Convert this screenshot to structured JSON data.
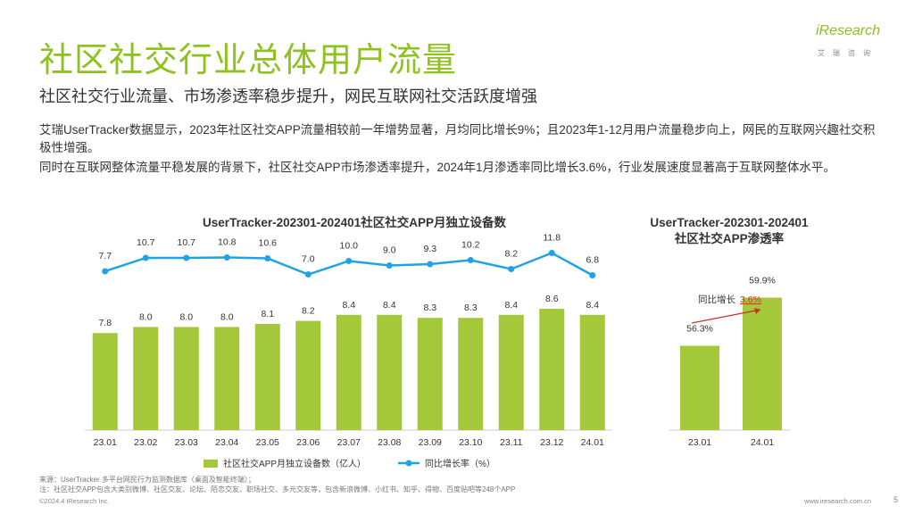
{
  "page": {
    "title": "社区社交行业总体用户流量",
    "subtitle": "社区社交行业流量、市场渗透率稳步提升，网民互联网社交活跃度增强",
    "para1": "艾瑞UserTracker数据显示，2023年社区社交APP流量相较前一年增势显著，月均同比增长9%；且2023年1-12月用户流量稳步向上，网民的互联网兴趣社交积极性增强。",
    "para2": "同时在互联网整体流量平稳发展的背景下，社区社交APP市场渗透率提升，2024年1月渗透率同比增长3.6%，行业发展速度显著高于互联网整体水平。",
    "logo_main": "iResearch",
    "logo_sub": "艾瑞咨询",
    "source1": "来源：UserTracker 多平台网民行为监测数据库（桌面及智能终端）；",
    "source2": "注：社区社交APP包含大类别微博、社区交友、论坛、陌恋交友、职场社交、多元交友等，包含新浪微博、小红书、知乎、得物、百度贴吧等248个APP",
    "footer_left": "©2024.4 iResearch Inc.",
    "footer_right": "www.iresearch.com.cn",
    "page_number": "5"
  },
  "chart_data": [
    {
      "type": "bar",
      "title": "UserTracker-202301-202401社区社交APP月独立设备数",
      "categories": [
        "23.01",
        "23.02",
        "23.03",
        "23.04",
        "23.05",
        "23.06",
        "23.07",
        "23.08",
        "23.09",
        "23.10",
        "23.11",
        "23.12",
        "24.01"
      ],
      "series": [
        {
          "name": "社区社交APP月独立设备数（亿人）",
          "type": "bar",
          "color": "#a3c83a",
          "values": [
            7.8,
            8.0,
            8.0,
            8.0,
            8.1,
            8.2,
            8.4,
            8.4,
            8.3,
            8.3,
            8.4,
            8.6,
            8.4
          ]
        },
        {
          "name": "同比增长率（%）",
          "type": "line",
          "color": "#1fa3e8",
          "values": [
            7.7,
            10.7,
            10.7,
            10.8,
            10.6,
            7.0,
            10.0,
            9.0,
            9.3,
            10.2,
            8.2,
            11.8,
            6.8
          ]
        }
      ],
      "legend_position": "bottom",
      "grid": false
    },
    {
      "type": "bar",
      "title_line1": "UserTracker-202301-202401",
      "title_line2": "社区社交APP渗透率",
      "categories": [
        "23.01",
        "24.01"
      ],
      "values": [
        56.3,
        59.9
      ],
      "value_labels": [
        "56.3%",
        "59.9%"
      ],
      "annotation_label": "同比增长",
      "annotation_value": "3.6%",
      "color": "#a3c83a",
      "grid": false
    }
  ]
}
